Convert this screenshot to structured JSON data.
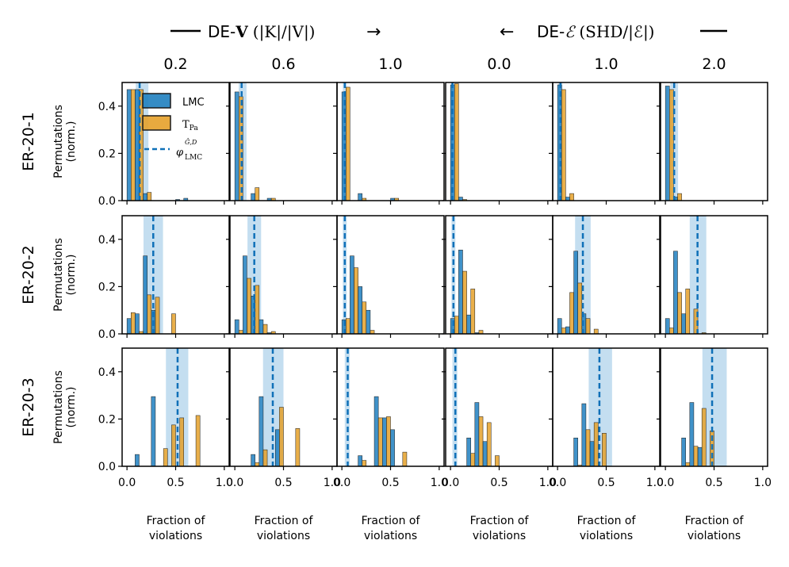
{
  "header": {
    "left": {
      "prefix": "DE-",
      "bold_symbol": "V",
      "math": "(|K|/|V|)",
      "arrow": "→"
    },
    "right": {
      "arrow": "←",
      "prefix": "DE-",
      "symbol": "ℰ",
      "math": "(SHD/|ℰ|)"
    }
  },
  "legend": {
    "lmc": "LMC",
    "tpa": "T",
    "tpa_sub": "Pa",
    "phi": "φ",
    "phi_sup": "Ĝ,D",
    "phi_sub": "LMC"
  },
  "colors": {
    "lmc": "#1f7fbf",
    "tpa": "#e5a12a",
    "phi_line": "#0f70b8",
    "band": "#9cc8e6"
  },
  "chart_data": {
    "type": "bar",
    "column_titles": [
      "0.2",
      "0.6",
      "1.0",
      "0.0",
      "1.0",
      "2.0"
    ],
    "row_labels": [
      "ER-20-1",
      "ER-20-2",
      "ER-20-3"
    ],
    "xlabel": "Fraction of violations",
    "ylabel": "Permutations (norm.)",
    "xlim": [
      -0.05,
      1.05
    ],
    "ylim": [
      0,
      0.5
    ],
    "xticks": [
      "0.0",
      "0.5",
      "1.0"
    ],
    "xtick_values": [
      0,
      0.5,
      1
    ],
    "yticks": [
      "0.0",
      "0.2",
      "0.4"
    ],
    "ytick_values": [
      0,
      0.2,
      0.4
    ],
    "bin_centers": [
      0.0417,
      0.125,
      0.2083,
      0.2917,
      0.375,
      0.4583,
      0.5417,
      0.625,
      0.7083,
      0.7917,
      0.875,
      0.9583
    ],
    "bar_width": 0.0833,
    "panels": [
      [
        {
          "lmc": [
            0.47,
            0.47,
            0.03,
            0,
            0,
            0,
            0.005,
            0.01,
            0,
            0,
            0,
            0
          ],
          "tpa": [
            0.47,
            0.47,
            0.035,
            0,
            0,
            0,
            0,
            0,
            0,
            0,
            0,
            0
          ],
          "phi": 0.13,
          "band": [
            0.09,
            0.22
          ]
        },
        {
          "lmc": [
            0.46,
            0,
            0.03,
            0,
            0.01,
            0,
            0,
            0,
            0,
            0,
            0,
            0
          ],
          "tpa": [
            0.44,
            0,
            0.055,
            0,
            0.01,
            0,
            0,
            0,
            0,
            0,
            0,
            0
          ],
          "phi": 0.07,
          "band": [
            0.04,
            0.12
          ]
        },
        {
          "lmc": [
            0.46,
            0,
            0.03,
            0,
            0,
            0,
            0.01,
            0,
            0,
            0,
            0,
            0
          ],
          "tpa": [
            0.48,
            0,
            0.01,
            0,
            0,
            0,
            0.01,
            0,
            0,
            0,
            0,
            0
          ],
          "phi": 0.03,
          "band": [
            0.01,
            0.05
          ]
        },
        {
          "lmc": [
            0.49,
            0.015,
            0,
            0,
            0,
            0,
            0,
            0,
            0,
            0,
            0,
            0
          ],
          "tpa": [
            0.495,
            0.005,
            0,
            0,
            0,
            0,
            0,
            0,
            0,
            0,
            0,
            0
          ],
          "phi": 0.02,
          "band": [
            0.005,
            0.035
          ]
        },
        {
          "lmc": [
            0.49,
            0.015,
            0,
            0,
            0,
            0,
            0,
            0,
            0,
            0,
            0,
            0
          ],
          "tpa": [
            0.47,
            0.03,
            0,
            0,
            0,
            0,
            0,
            0,
            0,
            0,
            0,
            0
          ],
          "phi": 0.03,
          "band": [
            0.01,
            0.05
          ]
        },
        {
          "lmc": [
            0.485,
            0.015,
            0,
            0,
            0,
            0,
            0,
            0,
            0,
            0,
            0,
            0
          ],
          "tpa": [
            0.47,
            0.03,
            0,
            0,
            0,
            0,
            0,
            0,
            0,
            0,
            0,
            0
          ],
          "phi": 0.09,
          "band": [
            0.05,
            0.13
          ]
        }
      ],
      [
        {
          "lmc": [
            0.065,
            0.085,
            0.33,
            0.1,
            0,
            0,
            0,
            0,
            0,
            0,
            0,
            0
          ],
          "tpa": [
            0.09,
            0.01,
            0.165,
            0.155,
            0,
            0.085,
            0,
            0,
            0,
            0,
            0,
            0
          ],
          "phi": 0.27,
          "band": [
            0.17,
            0.37
          ]
        },
        {
          "lmc": [
            0.06,
            0.33,
            0.16,
            0.06,
            0.005,
            0,
            0,
            0,
            0,
            0,
            0,
            0
          ],
          "tpa": [
            0.015,
            0.235,
            0.205,
            0.04,
            0.01,
            0,
            0,
            0,
            0,
            0,
            0,
            0
          ],
          "phi": 0.2,
          "band": [
            0.13,
            0.27
          ]
        },
        {
          "lmc": [
            0.06,
            0.33,
            0.2,
            0.1,
            0,
            0,
            0,
            0,
            0,
            0,
            0,
            0
          ],
          "tpa": [
            0.065,
            0.28,
            0.135,
            0.015,
            0,
            0,
            0,
            0,
            0,
            0,
            0,
            0
          ],
          "phi": 0.03,
          "band": [
            0.01,
            0.05
          ]
        },
        {
          "lmc": [
            0.065,
            0.355,
            0.08,
            0.005,
            0,
            0,
            0,
            0,
            0,
            0,
            0,
            0
          ],
          "tpa": [
            0.075,
            0.265,
            0.19,
            0.015,
            0,
            0,
            0,
            0,
            0,
            0,
            0,
            0
          ],
          "phi": 0.03,
          "band": [
            0.01,
            0.05
          ]
        },
        {
          "lmc": [
            0.065,
            0.03,
            0.35,
            0.085,
            0,
            0,
            0,
            0,
            0,
            0,
            0,
            0
          ],
          "tpa": [
            0.025,
            0.175,
            0.215,
            0.065,
            0.02,
            0,
            0,
            0,
            0,
            0,
            0,
            0
          ],
          "phi": 0.26,
          "band": [
            0.18,
            0.34
          ]
        },
        {
          "lmc": [
            0.065,
            0.35,
            0.085,
            0,
            0,
            0,
            0,
            0,
            0,
            0,
            0,
            0
          ],
          "tpa": [
            0.025,
            0.175,
            0.19,
            0.105,
            0.005,
            0,
            0,
            0,
            0,
            0,
            0,
            0
          ],
          "phi": 0.33,
          "band": [
            0.25,
            0.42
          ]
        }
      ],
      [
        {
          "lmc": [
            0,
            0.05,
            0,
            0.295,
            0,
            0,
            0,
            0,
            0,
            0,
            0,
            0
          ],
          "tpa": [
            0,
            0,
            0,
            0,
            0.075,
            0.175,
            0.205,
            0,
            0.215,
            0,
            0,
            0
          ],
          "phi": 0.52,
          "band": [
            0.4,
            0.63
          ]
        },
        {
          "lmc": [
            0,
            0,
            0.05,
            0.295,
            0,
            0.155,
            0,
            0,
            0,
            0,
            0,
            0
          ],
          "tpa": [
            0,
            0,
            0.015,
            0.07,
            0,
            0.25,
            0,
            0.16,
            0,
            0,
            0,
            0
          ],
          "phi": 0.39,
          "band": [
            0.29,
            0.5
          ]
        },
        {
          "lmc": [
            0,
            0,
            0.045,
            0,
            0.295,
            0.205,
            0.155,
            0,
            0,
            0,
            0,
            0
          ],
          "tpa": [
            0,
            0,
            0.025,
            0,
            0.205,
            0.21,
            0,
            0.06,
            0,
            0,
            0,
            0
          ],
          "phi": 0.06,
          "band": [
            0.03,
            0.08
          ]
        },
        {
          "lmc": [
            0,
            0,
            0.12,
            0.27,
            0.105,
            0,
            0,
            0,
            0,
            0,
            0,
            0
          ],
          "tpa": [
            0,
            0,
            0.055,
            0.21,
            0.185,
            0.045,
            0,
            0,
            0,
            0,
            0,
            0
          ],
          "phi": 0.05,
          "band": [
            0.02,
            0.07
          ]
        },
        {
          "lmc": [
            0,
            0,
            0.12,
            0.265,
            0.105,
            0,
            0,
            0,
            0,
            0,
            0,
            0
          ],
          "tpa": [
            0,
            0,
            0.005,
            0.155,
            0.185,
            0.14,
            0,
            0,
            0,
            0,
            0,
            0
          ],
          "phi": 0.43,
          "band": [
            0.32,
            0.56
          ]
        },
        {
          "lmc": [
            0,
            0,
            0.12,
            0.27,
            0.08,
            0,
            0,
            0,
            0,
            0,
            0,
            0
          ],
          "tpa": [
            0,
            0,
            0.015,
            0.085,
            0.245,
            0.15,
            0,
            0,
            0,
            0,
            0,
            0
          ],
          "phi": 0.48,
          "band": [
            0.38,
            0.63
          ]
        }
      ]
    ]
  }
}
